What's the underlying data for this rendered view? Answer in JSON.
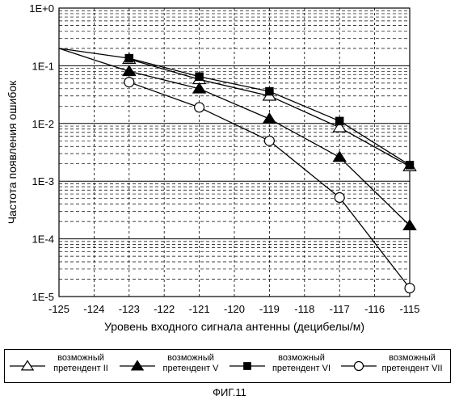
{
  "chart_data": {
    "type": "line",
    "title": "",
    "xlabel": "Уровень входного сигнала антенны (децибелы/м)",
    "ylabel": "Частота появления ошибок",
    "xlim": [
      -125,
      -115
    ],
    "ylim": [
      1e-05,
      1
    ],
    "yscale": "log",
    "grid": true,
    "x_ticks": [
      -125,
      -124,
      -123,
      -122,
      -121,
      -120,
      -119,
      -118,
      -117,
      -116,
      -115
    ],
    "y_ticks": [
      1,
      0.1,
      0.01,
      0.001,
      0.0001,
      1e-05
    ],
    "y_tick_labels": [
      "1E+0",
      "1E-1",
      "1E-2",
      "1E-3",
      "1E-4",
      "1E-5"
    ],
    "legend_position": "bottom",
    "series": [
      {
        "name": "возможный претендент II",
        "marker": "triangle-open",
        "x": [
          -123,
          -121,
          -119,
          -117,
          -115
        ],
        "y": [
          0.13,
          0.058,
          0.03,
          0.0085,
          0.0018
        ]
      },
      {
        "name": "возможный претендент V",
        "marker": "triangle-filled",
        "x": [
          -123,
          -121,
          -119,
          -117,
          -115
        ],
        "y": [
          0.08,
          0.04,
          0.012,
          0.0026,
          0.00017
        ]
      },
      {
        "name": "возможный претендент VI",
        "marker": "square-filled",
        "x": [
          -123,
          -121,
          -119,
          -117,
          -115
        ],
        "y": [
          0.135,
          0.065,
          0.036,
          0.011,
          0.0019
        ]
      },
      {
        "name": "возможный претендент VII",
        "marker": "circle-open",
        "x": [
          -123,
          -121,
          -119,
          -117,
          -115
        ],
        "y": [
          0.052,
          0.019,
          0.005,
          0.00052,
          1.4e-05
        ]
      }
    ],
    "extra_segments": [
      {
        "x": [
          -125,
          -123
        ],
        "y": [
          0.2,
          0.135
        ]
      },
      {
        "x": [
          -125,
          -123
        ],
        "y": [
          0.2,
          0.08
        ]
      }
    ]
  },
  "legend": [
    {
      "line1": "возможный",
      "line2": "претендент II",
      "marker": "triangle-open"
    },
    {
      "line1": "возможный",
      "line2": "претендент V",
      "marker": "triangle-filled"
    },
    {
      "line1": "возможный",
      "line2": "претендент VI",
      "marker": "square-filled"
    },
    {
      "line1": "возможный",
      "line2": "претендент VII",
      "marker": "circle-open"
    }
  ],
  "caption": "ФИГ.11"
}
